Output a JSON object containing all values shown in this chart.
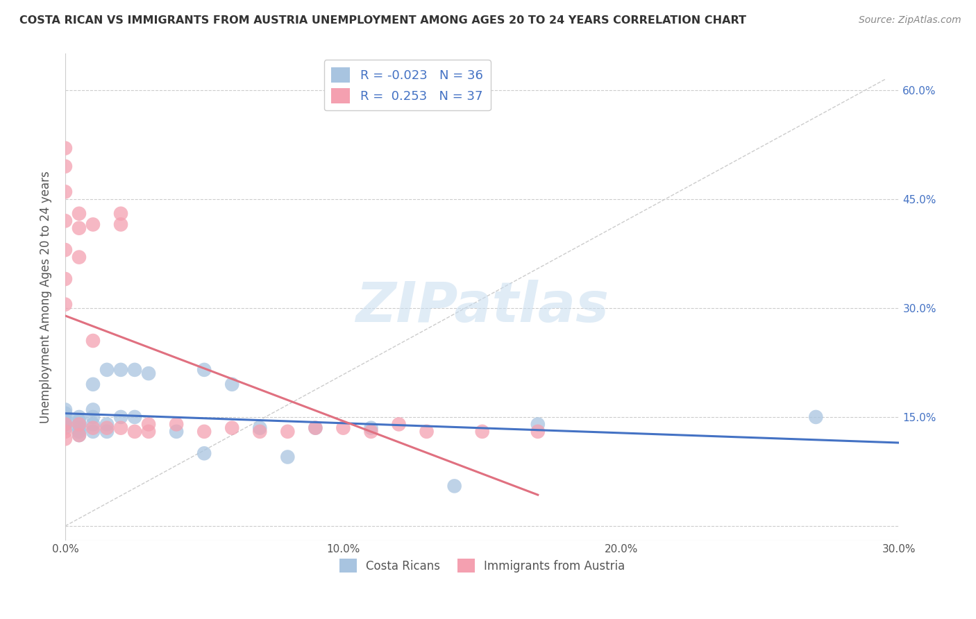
{
  "title": "COSTA RICAN VS IMMIGRANTS FROM AUSTRIA UNEMPLOYMENT AMONG AGES 20 TO 24 YEARS CORRELATION CHART",
  "source": "Source: ZipAtlas.com",
  "ylabel": "Unemployment Among Ages 20 to 24 years",
  "xlim": [
    0.0,
    0.3
  ],
  "ylim": [
    -0.02,
    0.65
  ],
  "yticks": [
    0.0,
    0.15,
    0.3,
    0.45,
    0.6
  ],
  "ytick_labels": [
    "0.0%",
    "15.0%",
    "30.0%",
    "45.0%",
    "60.0%"
  ],
  "xticks": [
    0.0,
    0.1,
    0.2,
    0.3
  ],
  "xtick_labels": [
    "0.0%",
    "10.0%",
    "20.0%",
    "30.0%"
  ],
  "right_ytick_labels": [
    "60.0%",
    "45.0%",
    "30.0%",
    "15.0%"
  ],
  "right_yticks": [
    0.6,
    0.45,
    0.3,
    0.15
  ],
  "series1_name": "Costa Ricans",
  "series2_name": "Immigrants from Austria",
  "series1_R": "-0.023",
  "series1_N": "36",
  "series2_R": "0.253",
  "series2_N": "37",
  "series1_color": "#a8c4e0",
  "series2_color": "#f4a0b0",
  "series1_line_color": "#4472c4",
  "series2_line_color": "#e07080",
  "background_color": "#ffffff",
  "grid_color": "#cccccc",
  "watermark_text": "ZIPatlas",
  "series1_x": [
    0.0,
    0.0,
    0.0,
    0.0,
    0.0,
    0.0,
    0.005,
    0.005,
    0.005,
    0.005,
    0.005,
    0.005,
    0.01,
    0.01,
    0.01,
    0.01,
    0.01,
    0.015,
    0.015,
    0.015,
    0.02,
    0.02,
    0.025,
    0.025,
    0.03,
    0.04,
    0.05,
    0.05,
    0.06,
    0.07,
    0.08,
    0.09,
    0.11,
    0.14,
    0.17,
    0.27
  ],
  "series1_y": [
    0.135,
    0.14,
    0.145,
    0.15,
    0.155,
    0.16,
    0.125,
    0.13,
    0.135,
    0.14,
    0.145,
    0.15,
    0.13,
    0.14,
    0.15,
    0.16,
    0.195,
    0.13,
    0.14,
    0.215,
    0.15,
    0.215,
    0.15,
    0.215,
    0.21,
    0.13,
    0.1,
    0.215,
    0.195,
    0.135,
    0.095,
    0.135,
    0.135,
    0.055,
    0.14,
    0.15
  ],
  "series2_x": [
    0.0,
    0.0,
    0.0,
    0.0,
    0.0,
    0.0,
    0.0,
    0.0,
    0.0,
    0.0,
    0.005,
    0.005,
    0.005,
    0.005,
    0.005,
    0.01,
    0.01,
    0.01,
    0.015,
    0.02,
    0.02,
    0.02,
    0.025,
    0.03,
    0.03,
    0.04,
    0.05,
    0.06,
    0.07,
    0.08,
    0.09,
    0.1,
    0.11,
    0.12,
    0.13,
    0.15,
    0.17
  ],
  "series2_y": [
    0.52,
    0.495,
    0.46,
    0.42,
    0.38,
    0.34,
    0.305,
    0.14,
    0.13,
    0.12,
    0.43,
    0.41,
    0.37,
    0.14,
    0.125,
    0.415,
    0.255,
    0.135,
    0.135,
    0.43,
    0.415,
    0.135,
    0.13,
    0.14,
    0.13,
    0.14,
    0.13,
    0.135,
    0.13,
    0.13,
    0.135,
    0.135,
    0.13,
    0.14,
    0.13,
    0.13,
    0.13
  ]
}
